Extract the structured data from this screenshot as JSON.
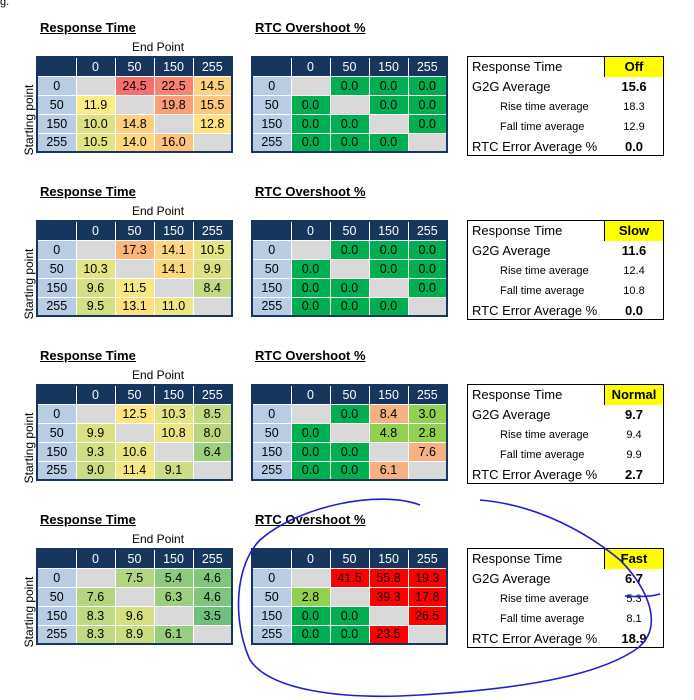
{
  "corner_text": "g.",
  "labels": {
    "response_time": "Response Time",
    "overshoot": "RTC Overshoot %",
    "end_point": "End Point",
    "starting_point": "Starting point",
    "summary_rt": "Response Time",
    "g2g": "G2G Average",
    "rise": "Rise time average",
    "fall": "Fall time average",
    "rtc_err": "RTC Error Average %"
  },
  "colors": {
    "header_bg": "#17365d",
    "row_header_bg": "#b8cce4",
    "empty_cell": "#d9d9d9",
    "badge": "#ffff00",
    "overshoot_green": "#00b050",
    "overshoot_red": "#ff0000",
    "overshoot_orange": "#f4b183",
    "annotation_blue": "#1f1fcf"
  },
  "chart_data": [
    {
      "type": "heatmap",
      "mode": "Off",
      "columns": [
        "0",
        "50",
        "150",
        "255"
      ],
      "response_time": [
        [
          null,
          24.5,
          22.5,
          14.5
        ],
        [
          11.9,
          null,
          19.8,
          15.5
        ],
        [
          10.0,
          14.8,
          null,
          12.8
        ],
        [
          10.5,
          14.0,
          16.0,
          null
        ]
      ],
      "overshoot": [
        [
          null,
          0.0,
          0.0,
          0.0
        ],
        [
          0.0,
          null,
          0.0,
          0.0
        ],
        [
          0.0,
          0.0,
          null,
          0.0
        ],
        [
          0.0,
          0.0,
          0.0,
          null
        ]
      ],
      "summary": {
        "mode": "Off",
        "g2g": "15.6",
        "rise": "18.3",
        "fall": "12.9",
        "rtc_error": "0.0"
      }
    },
    {
      "type": "heatmap",
      "mode": "Slow",
      "columns": [
        "0",
        "50",
        "150",
        "255"
      ],
      "response_time": [
        [
          null,
          17.3,
          14.1,
          10.5
        ],
        [
          10.3,
          null,
          14.1,
          9.9
        ],
        [
          9.6,
          11.5,
          null,
          8.4
        ],
        [
          9.5,
          13.1,
          11.0,
          null
        ]
      ],
      "overshoot": [
        [
          null,
          0.0,
          0.0,
          0.0
        ],
        [
          0.0,
          null,
          0.0,
          0.0
        ],
        [
          0.0,
          0.0,
          null,
          0.0
        ],
        [
          0.0,
          0.0,
          0.0,
          null
        ]
      ],
      "summary": {
        "mode": "Slow",
        "g2g": "11.6",
        "rise": "12.4",
        "fall": "10.8",
        "rtc_error": "0.0"
      }
    },
    {
      "type": "heatmap",
      "mode": "Normal",
      "columns": [
        "0",
        "50",
        "150",
        "255"
      ],
      "response_time": [
        [
          null,
          12.5,
          10.3,
          8.5
        ],
        [
          9.9,
          null,
          10.8,
          8.0
        ],
        [
          9.3,
          10.6,
          null,
          6.4
        ],
        [
          9.0,
          11.4,
          9.1,
          null
        ]
      ],
      "overshoot": [
        [
          null,
          0.0,
          8.4,
          3.0
        ],
        [
          0.0,
          null,
          4.8,
          2.8
        ],
        [
          0.0,
          0.0,
          null,
          7.6
        ],
        [
          0.0,
          0.0,
          6.1,
          null
        ]
      ],
      "summary": {
        "mode": "Normal",
        "g2g": "9.7",
        "rise": "9.4",
        "fall": "9.9",
        "rtc_error": "2.7"
      }
    },
    {
      "type": "heatmap",
      "mode": "Fast",
      "columns": [
        "0",
        "50",
        "150",
        "255"
      ],
      "response_time": [
        [
          null,
          7.5,
          5.4,
          4.6
        ],
        [
          7.6,
          null,
          6.3,
          4.6
        ],
        [
          8.3,
          9.6,
          null,
          3.5
        ],
        [
          8.3,
          8.9,
          6.1,
          null
        ]
      ],
      "overshoot": [
        [
          null,
          41.5,
          55.8,
          19.3
        ],
        [
          2.8,
          null,
          39.3,
          17.8
        ],
        [
          0.0,
          0.0,
          null,
          26.5
        ],
        [
          0.0,
          0.0,
          23.5,
          null
        ]
      ],
      "summary": {
        "mode": "Fast",
        "g2g": "6.7",
        "rise": "5.3",
        "fall": "8.1",
        "rtc_error": "18.9"
      }
    }
  ]
}
